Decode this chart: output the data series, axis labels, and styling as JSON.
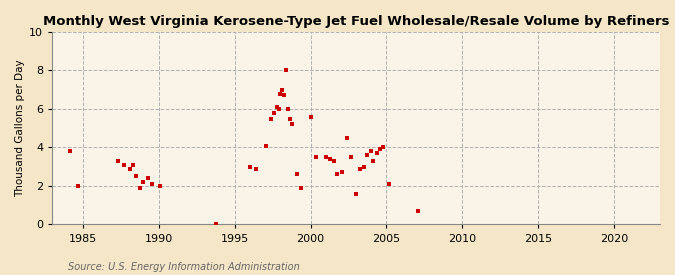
{
  "title": "Monthly West Virginia Kerosene-Type Jet Fuel Wholesale/Resale Volume by Refiners",
  "ylabel": "Thousand Gallons per Day",
  "source": "Source: U.S. Energy Information Administration",
  "xlim": [
    1983,
    2023
  ],
  "ylim": [
    0,
    10
  ],
  "xticks": [
    1985,
    1990,
    1995,
    2000,
    2005,
    2010,
    2015,
    2020
  ],
  "yticks": [
    0,
    2,
    4,
    6,
    8,
    10
  ],
  "background_color": "#f5e6c8",
  "plot_bg_color": "#faf4e8",
  "marker_color": "#cc0000",
  "grid_color": "#aaaaaa",
  "data_x": [
    1984.2,
    1984.7,
    1987.3,
    1987.7,
    1988.1,
    1988.3,
    1988.5,
    1988.8,
    1989.0,
    1989.3,
    1989.6,
    1990.1,
    1993.8,
    1996.0,
    1996.4,
    1997.1,
    1997.4,
    1997.6,
    1997.8,
    1997.9,
    1998.0,
    1998.15,
    1998.25,
    1998.4,
    1998.55,
    1998.65,
    1998.8,
    1999.1,
    1999.35,
    2000.0,
    2000.35,
    2001.0,
    2001.3,
    2001.55,
    2001.75,
    2002.1,
    2002.4,
    2002.65,
    2003.0,
    2003.25,
    2003.5,
    2003.75,
    2003.95,
    2004.1,
    2004.35,
    2004.55,
    2004.75,
    2005.15,
    2007.1
  ],
  "data_y": [
    3.8,
    2.0,
    3.3,
    3.1,
    2.9,
    3.1,
    2.5,
    1.9,
    2.2,
    2.4,
    2.1,
    2.0,
    0.0,
    3.0,
    2.9,
    4.1,
    5.5,
    5.8,
    6.1,
    6.0,
    6.8,
    7.0,
    6.7,
    8.0,
    6.0,
    5.5,
    5.2,
    2.6,
    1.9,
    5.6,
    3.5,
    3.5,
    3.4,
    3.3,
    2.6,
    2.7,
    4.5,
    3.5,
    1.6,
    2.9,
    3.0,
    3.6,
    3.8,
    3.3,
    3.7,
    3.9,
    4.0,
    2.1,
    0.7
  ],
  "title_fontsize": 9.5,
  "ylabel_fontsize": 7.5,
  "tick_fontsize": 8,
  "source_fontsize": 7
}
